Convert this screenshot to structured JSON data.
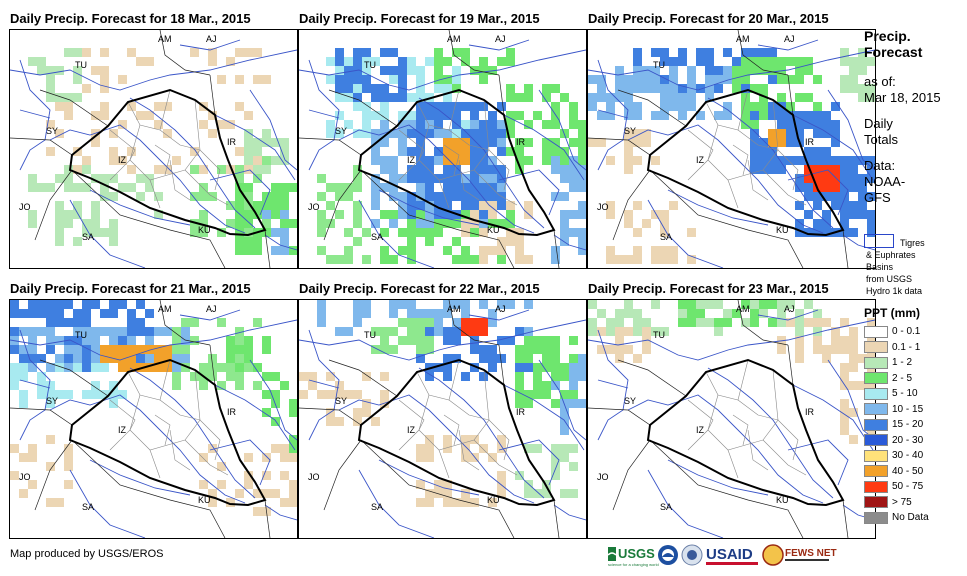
{
  "panels": [
    {
      "title": "Daily Precip. Forecast for 18 Mar., 2015",
      "cells": [
        [
          0.1,
          0.3,
          0.75,
          0.3,
          0.2,
          "#ecd6b4"
        ],
        [
          0.05,
          0.55,
          0.3,
          0.35,
          0.5,
          "#b7e8b7"
        ],
        [
          0.35,
          0.58,
          0.2,
          0.2,
          0.4,
          "#b7e8b7"
        ],
        [
          0.6,
          0.5,
          0.3,
          0.35,
          0.4,
          "#8ee88e"
        ],
        [
          0.78,
          0.62,
          0.2,
          0.3,
          0.55,
          "#6ee66e"
        ],
        [
          0.8,
          0.4,
          0.15,
          0.2,
          0.4,
          "#b7e8b7"
        ],
        [
          0.2,
          0.05,
          0.3,
          0.2,
          0.35,
          "#ecd6b4"
        ],
        [
          0.6,
          0.05,
          0.3,
          0.15,
          0.3,
          "#ecd6b4"
        ],
        [
          0.05,
          0.05,
          0.2,
          0.25,
          0.35,
          "#b7e8b7"
        ],
        [
          0.82,
          0.72,
          0.15,
          0.2,
          0.45,
          "#7fb8ec"
        ]
      ]
    },
    {
      "title": "Daily Precip. Forecast for 19 Mar., 2015",
      "cells": [
        [
          0.08,
          0.1,
          0.5,
          0.35,
          0.55,
          "#a8eaf0"
        ],
        [
          0.25,
          0.35,
          0.45,
          0.45,
          0.6,
          "#7fb8ec"
        ],
        [
          0.35,
          0.28,
          0.35,
          0.5,
          0.65,
          "#3f7fe0"
        ],
        [
          0.48,
          0.45,
          0.1,
          0.1,
          0.95,
          "#f2a12a"
        ],
        [
          0.1,
          0.05,
          0.25,
          0.25,
          0.6,
          "#3f7fe0"
        ],
        [
          0.45,
          0.05,
          0.3,
          0.2,
          0.45,
          "#6ee66e"
        ],
        [
          0.7,
          0.2,
          0.3,
          0.4,
          0.5,
          "#6ee66e"
        ],
        [
          0.85,
          0.5,
          0.15,
          0.45,
          0.5,
          "#7fb8ec"
        ],
        [
          0.05,
          0.55,
          0.2,
          0.4,
          0.45,
          "#8ee88e"
        ],
        [
          0.28,
          0.75,
          0.5,
          0.2,
          0.5,
          "#6ee66e"
        ],
        [
          0.55,
          0.7,
          0.25,
          0.25,
          0.5,
          "#ecd6b4"
        ]
      ]
    },
    {
      "title": "Daily Precip. Forecast for 20 Mar., 2015",
      "cells": [
        [
          0.15,
          0.05,
          0.5,
          0.2,
          0.55,
          "#3f7fe0"
        ],
        [
          0.0,
          0.15,
          0.5,
          0.2,
          0.5,
          "#7fb8ec"
        ],
        [
          0.5,
          0.1,
          0.3,
          0.3,
          0.5,
          "#6ee66e"
        ],
        [
          0.55,
          0.3,
          0.3,
          0.3,
          0.65,
          "#3f7fe0"
        ],
        [
          0.7,
          0.5,
          0.3,
          0.35,
          0.7,
          "#3f7fe0"
        ],
        [
          0.75,
          0.55,
          0.1,
          0.1,
          0.9,
          "#ff3a12"
        ],
        [
          0.6,
          0.4,
          0.06,
          0.08,
          0.9,
          "#f2a12a"
        ],
        [
          0.85,
          0.05,
          0.15,
          0.25,
          0.45,
          "#b7e8b7"
        ],
        [
          0.0,
          0.4,
          0.25,
          0.2,
          0.35,
          "#ecd6b4"
        ],
        [
          0.05,
          0.7,
          0.3,
          0.25,
          0.35,
          "#ecd6b4"
        ]
      ]
    },
    {
      "title": "Daily Precip. Forecast for 21 Mar., 2015",
      "cells": [
        [
          0.0,
          0.0,
          0.5,
          0.3,
          0.55,
          "#3f7fe0"
        ],
        [
          0.0,
          0.1,
          0.6,
          0.2,
          0.55,
          "#7fb8ec"
        ],
        [
          0.3,
          0.18,
          0.25,
          0.1,
          0.85,
          "#f2a12a"
        ],
        [
          0.0,
          0.25,
          0.4,
          0.2,
          0.45,
          "#a8eaf0"
        ],
        [
          0.55,
          0.05,
          0.3,
          0.3,
          0.45,
          "#8ee88e"
        ],
        [
          0.85,
          0.3,
          0.15,
          0.35,
          0.4,
          "#6ee66e"
        ],
        [
          0.65,
          0.6,
          0.35,
          0.3,
          0.35,
          "#ecd6b4"
        ],
        [
          0.0,
          0.55,
          0.2,
          0.3,
          0.35,
          "#ecd6b4"
        ],
        [
          0.75,
          0.15,
          0.15,
          0.15,
          0.5,
          "#6ee66e"
        ]
      ]
    },
    {
      "title": "Daily Precip. Forecast for 22 Mar., 2015",
      "cells": [
        [
          0.05,
          0.0,
          0.75,
          0.15,
          0.45,
          "#7fb8ec"
        ],
        [
          0.4,
          0.08,
          0.4,
          0.25,
          0.55,
          "#3f7fe0"
        ],
        [
          0.55,
          0.05,
          0.08,
          0.08,
          0.9,
          "#ff3a12"
        ],
        [
          0.7,
          0.15,
          0.25,
          0.3,
          0.55,
          "#6ee66e"
        ],
        [
          0.85,
          0.2,
          0.15,
          0.35,
          0.5,
          "#7fb8ec"
        ],
        [
          0.25,
          0.05,
          0.2,
          0.15,
          0.45,
          "#8ee88e"
        ],
        [
          0.0,
          0.3,
          0.3,
          0.2,
          0.35,
          "#ecd6b4"
        ],
        [
          0.4,
          0.55,
          0.3,
          0.3,
          0.35,
          "#ecd6b4"
        ],
        [
          0.75,
          0.6,
          0.2,
          0.2,
          0.45,
          "#b7e8b7"
        ]
      ]
    },
    {
      "title": "Daily Precip. Forecast for 23 Mar., 2015",
      "cells": [
        [
          0.0,
          0.0,
          0.8,
          0.12,
          0.45,
          "#b7e8b7"
        ],
        [
          0.3,
          0.0,
          0.35,
          0.08,
          0.5,
          "#6ee66e"
        ],
        [
          0.65,
          0.05,
          0.35,
          0.2,
          0.4,
          "#ecd6b4"
        ],
        [
          0.85,
          0.25,
          0.15,
          0.35,
          0.35,
          "#ecd6b4"
        ],
        [
          0.0,
          0.1,
          0.2,
          0.15,
          0.35,
          "#ecd6b4"
        ]
      ]
    }
  ],
  "map_labels": {
    "am": "AM",
    "aj": "AJ",
    "tu": "TU",
    "sy": "SY",
    "iz": "IZ",
    "ir": "IR",
    "jo": "JO",
    "sa": "SA",
    "ku": "KU"
  },
  "side": {
    "title1": "Precip.",
    "title2": "Forecast",
    "asof1": "as of:",
    "asof2": "Mar 18, 2015",
    "daily1": "Daily",
    "daily2": "Totals",
    "data1": "Data:",
    "data2": "NOAA-",
    "data3": "GFS"
  },
  "basin": {
    "line1": "Tigres",
    "line2": "& Euphrates",
    "line3": "Basins",
    "line4": "from USGS",
    "line5": "Hydro 1k data"
  },
  "legend": {
    "title": "PPT (mm)",
    "items": [
      {
        "label": "0 - 0.1",
        "color": "#ffffff"
      },
      {
        "label": "0.1 - 1",
        "color": "#ecd6b4"
      },
      {
        "label": "1 - 2",
        "color": "#b7e8b7"
      },
      {
        "label": "2 - 5",
        "color": "#6ee66e"
      },
      {
        "label": "5 - 10",
        "color": "#a8eaf0"
      },
      {
        "label": "10 - 15",
        "color": "#7fb8ec"
      },
      {
        "label": "15 - 20",
        "color": "#3f7fe0"
      },
      {
        "label": "20 - 30",
        "color": "#2a5ad8"
      },
      {
        "label": "30 - 40",
        "color": "#ffe27a"
      },
      {
        "label": "40 - 50",
        "color": "#f2a12a"
      },
      {
        "label": "50 - 75",
        "color": "#ff3a12"
      },
      {
        "label": "> 75",
        "color": "#a01515"
      },
      {
        "label": "No Data",
        "color": "#8c8c8c"
      }
    ]
  },
  "credit": "Map produced by USGS/EROS",
  "logos": {
    "usgs": "USGS",
    "usaid": "USAID",
    "fews": "FEWS NET",
    "usgs_tag": "science for a changing world"
  }
}
